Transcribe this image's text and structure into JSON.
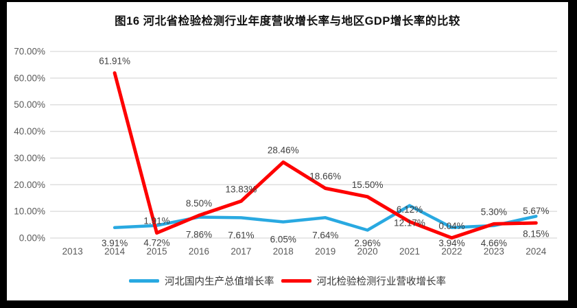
{
  "title": "图16 河北省检验检测行业年度营收增长率与地区GDP增长率的比较",
  "colors": {
    "frame": "#000000",
    "background": "#ffffff",
    "gridline": "#d9d9d9",
    "axis_text": "#595959",
    "data_label_text": "#404040",
    "series_blue": "#29a9e1",
    "series_red": "#fe0000"
  },
  "chart_data": {
    "type": "line",
    "categories": [
      "2013",
      "2014",
      "2015",
      "2016",
      "2017",
      "2018",
      "2019",
      "2020",
      "2021",
      "2022",
      "2023",
      "2024"
    ],
    "series": [
      {
        "name": "河北国内生产总值增长率",
        "color": "#29a9e1",
        "label_position": "below",
        "values": [
          null,
          3.91,
          4.72,
          7.86,
          7.61,
          6.05,
          7.64,
          2.96,
          12.17,
          3.94,
          4.66,
          8.15
        ],
        "labels": [
          null,
          "3.91%",
          "4.72%",
          "7.86%",
          "7.61%",
          "6.05%",
          "7.64%",
          "2.96%",
          "12.17%",
          "3.94%",
          "4.66%",
          "8.15%"
        ]
      },
      {
        "name": "河北检验检测行业营收增长率",
        "color": "#fe0000",
        "label_position": "above",
        "values": [
          null,
          61.91,
          1.91,
          8.5,
          13.83,
          28.46,
          18.66,
          15.5,
          6.12,
          0.04,
          5.3,
          5.67
        ],
        "labels": [
          null,
          "61.91%",
          "1.91%",
          "8.50%",
          "13.83%",
          "28.46%",
          "18.66%",
          "15.50%",
          "6.12%",
          "0.04%",
          "5.30%",
          "5.67%"
        ]
      }
    ],
    "y_axis": {
      "min": 0,
      "max": 70,
      "step": 10,
      "tick_labels": [
        "0.00%",
        "10.00%",
        "20.00%",
        "30.00%",
        "40.00%",
        "50.00%",
        "60.00%",
        "70.00%"
      ]
    },
    "x_axis": {
      "tick_labels": [
        "2013",
        "2014",
        "2015",
        "2016",
        "2017",
        "2018",
        "2019",
        "2020",
        "2021",
        "2022",
        "2023",
        "2024"
      ]
    },
    "grid": true,
    "legend_position": "bottom"
  }
}
